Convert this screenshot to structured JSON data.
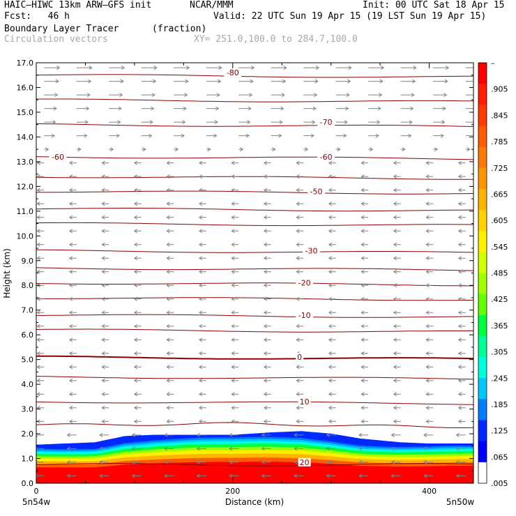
{
  "header": {
    "model": "HAIC–HIWC 13km ARW–GFS init",
    "org": "NCAR/MMM",
    "init": "Init: 00 UTC Sat 18 Apr 15",
    "fcst": "Fcst:   46 h",
    "valid": "Valid: 22 UTC Sun 19 Apr 15 (19 LST Sun 19 Apr 15)",
    "field": "Boundary Layer Tracer",
    "units": "(fraction)",
    "vectors": "Circulation vectors",
    "xy": "XY= 251.0,100.0 to 284.7,100.0"
  },
  "chart_data": {
    "type": "heatmap",
    "xlabel": "Distance (km)",
    "ylabel": "Height (km)",
    "xlim": [
      0,
      445
    ],
    "ylim": [
      0,
      17
    ],
    "x_ticks": [
      "0",
      "200",
      "400"
    ],
    "x_end_labels": [
      "5n54w",
      "5n50w"
    ],
    "y_ticks": [
      "0.0",
      "1.0",
      "2.0",
      "3.0",
      "4.0",
      "5.0",
      "6.0",
      "7.0",
      "8.0",
      "9.0",
      "10.0",
      "11.0",
      "12.0",
      "13.0",
      "14.0",
      "15.0",
      "16.0",
      "17.0"
    ],
    "colorbar_labels": [
      "–",
      ".905",
      ".845",
      ".785",
      ".725",
      ".665",
      ".605",
      ".545",
      ".485",
      ".425",
      ".365",
      ".305",
      ".245",
      ".185",
      ".125",
      ".065",
      ".005"
    ],
    "colorbar_colors": [
      "#ff0000",
      "#ff1e00",
      "#ff3c00",
      "#ff5a00",
      "#ff7800",
      "#ff9600",
      "#ffb400",
      "#ffd200",
      "#fff000",
      "#d2ff00",
      "#a0ff00",
      "#64ff00",
      "#00ff3c",
      "#00ff96",
      "#00ffdc",
      "#00c8ff",
      "#007dff",
      "#0028ff",
      "#0000ff",
      "#ffffff"
    ],
    "contour_color": "#8b0000",
    "vector_color": "#808080",
    "contour_labels": [
      {
        "text": "-80",
        "x": 200,
        "y": 16.6
      },
      {
        "text": "-70",
        "x": 295,
        "y": 14.6
      },
      {
        "text": "-60",
        "x": 22,
        "y": 13.2
      },
      {
        "text": "-60",
        "x": 295,
        "y": 13.2
      },
      {
        "text": "-50",
        "x": 285,
        "y": 11.8
      },
      {
        "text": "-30",
        "x": 280,
        "y": 9.4
      },
      {
        "text": "-20",
        "x": 273,
        "y": 8.1
      },
      {
        "text": "-10",
        "x": 273,
        "y": 6.8
      },
      {
        "text": "0",
        "x": 268,
        "y": 5.1
      },
      {
        "text": "10",
        "x": 273,
        "y": 3.3
      },
      {
        "text": "20",
        "x": 273,
        "y": 0.85
      }
    ],
    "temperature_contours_y": [
      16.5,
      15.5,
      14.5,
      13.2,
      12.4,
      11.8,
      11.1,
      10.5,
      9.4,
      8.7,
      8.1,
      7.5,
      6.8,
      6.2,
      5.1,
      4.3,
      3.3,
      2.4
    ],
    "tracer_top": {
      "x": [
        0,
        30,
        60,
        90,
        120,
        160,
        200,
        240,
        270,
        300,
        330,
        370,
        400,
        445
      ],
      "height": [
        1.55,
        1.6,
        1.65,
        1.9,
        1.95,
        1.95,
        1.95,
        2.05,
        2.1,
        2.0,
        1.8,
        1.65,
        1.6,
        1.6
      ]
    }
  }
}
